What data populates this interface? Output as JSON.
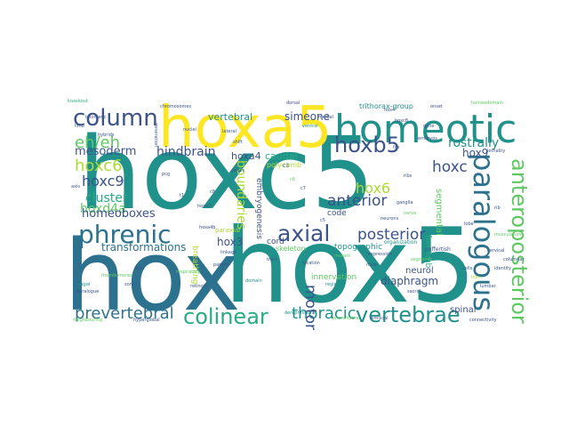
{
  "colors": {
    "background": "#ffffff",
    "palette": {
      "dark_purple": "#440154",
      "indigo": "#3b528b",
      "slate_blue": "#2c728e",
      "teal": "#21918c",
      "green": "#27ad81",
      "light_green": "#5ec962",
      "lime": "#aadc32",
      "yellow": "#fde725"
    }
  },
  "words": [
    {
      "text": "hoxc5",
      "color": "teal"
    },
    {
      "text": "hox",
      "color": "slate_blue"
    },
    {
      "text": "hox5",
      "color": "teal"
    },
    {
      "text": "hoxa5",
      "color": "yellow"
    },
    {
      "text": "homeotic",
      "color": "teal"
    },
    {
      "text": "paralogous",
      "color": "slate_blue"
    },
    {
      "text": "column",
      "color": "indigo"
    },
    {
      "text": "hoxb5",
      "color": "indigo"
    },
    {
      "text": "phrenic",
      "color": "slate_blue"
    },
    {
      "text": "axial",
      "color": "indigo"
    },
    {
      "text": "anteroposterior",
      "color": "light_green"
    },
    {
      "text": "colinear",
      "color": "green"
    },
    {
      "text": "vertebrae",
      "color": "teal"
    },
    {
      "text": "eh/eh",
      "color": "light_green"
    },
    {
      "text": "hoxc6",
      "color": "lime"
    },
    {
      "text": "anterior",
      "color": "indigo"
    },
    {
      "text": "posterior",
      "color": "indigo"
    },
    {
      "text": "prevertebral",
      "color": "slate_blue"
    },
    {
      "text": "thoracic",
      "color": "teal"
    },
    {
      "text": "motor",
      "color": "indigo"
    },
    {
      "text": "hoxc",
      "color": "indigo"
    },
    {
      "text": "hoxc9",
      "color": "indigo"
    },
    {
      "text": "hox6",
      "color": "lime"
    },
    {
      "text": "hoxd4a",
      "color": "light_green"
    },
    {
      "text": "cluster",
      "color": "green"
    },
    {
      "text": "rostrally",
      "color": "teal"
    },
    {
      "text": "homeoboxes",
      "color": "indigo"
    },
    {
      "text": "mesoderm",
      "color": "indigo"
    },
    {
      "text": "hindbrain",
      "color": "indigo"
    },
    {
      "text": "boundaries",
      "color": "lime"
    },
    {
      "text": "transformations",
      "color": "slate_blue"
    },
    {
      "text": "hox3",
      "color": "indigo"
    },
    {
      "text": "hox9",
      "color": "indigo"
    },
    {
      "text": "simeone",
      "color": "indigo"
    },
    {
      "text": "vertebral",
      "color": "teal"
    },
    {
      "text": "hoxa4",
      "color": "indigo"
    },
    {
      "text": "caudal",
      "color": "green"
    },
    {
      "text": "innervation",
      "color": "light_green"
    },
    {
      "text": "trithorax-group",
      "color": "teal"
    },
    {
      "text": "diaphragm",
      "color": "indigo"
    },
    {
      "text": "neurol",
      "color": "indigo"
    },
    {
      "text": "spinal",
      "color": "indigo"
    },
    {
      "text": "segmental",
      "color": "light_green"
    },
    {
      "text": "forelimb",
      "color": "green"
    },
    {
      "text": "code",
      "color": "indigo"
    },
    {
      "text": "cord",
      "color": "indigo"
    },
    {
      "text": "skeleton",
      "color": "light_green"
    },
    {
      "text": "breathing",
      "color": "lime"
    },
    {
      "text": "topographic",
      "color": "teal"
    },
    {
      "text": "embryogenesis",
      "color": "indigo"
    },
    {
      "text": "polycomb",
      "color": "lime"
    },
    {
      "text": "paraxial",
      "color": "lime"
    },
    {
      "text": "organization",
      "color": "teal"
    },
    {
      "text": "puffertish",
      "color": "indigo"
    },
    {
      "text": "neighbouring",
      "color": "light_green"
    },
    {
      "text": "hyperglobal",
      "color": "indigo"
    },
    {
      "text": "telomeric",
      "color": "indigo"
    },
    {
      "text": "musculature",
      "color": "light_green"
    },
    {
      "text": "connectivity",
      "color": "indigo"
    },
    {
      "text": "derepression",
      "color": "teal"
    },
    {
      "text": "lemiscal",
      "color": "indigo"
    },
    {
      "text": "prevertebra",
      "color": "light_green"
    },
    {
      "text": "chromosomes",
      "color": "indigo"
    },
    {
      "text": "generation",
      "color": "indigo"
    },
    {
      "text": "hybrids",
      "color": "indigo"
    },
    {
      "text": "knockout",
      "color": "green"
    },
    {
      "text": "homeodomain",
      "color": "light_green"
    },
    {
      "text": "lethality",
      "color": "indigo"
    },
    {
      "text": "embryos",
      "color": "indigo"
    },
    {
      "text": "axis",
      "color": "indigo"
    },
    {
      "text": "location",
      "color": "indigo"
    },
    {
      "text": "pattern",
      "color": "indigo"
    },
    {
      "text": "linkage",
      "color": "indigo"
    },
    {
      "text": "respiratory",
      "color": "light_green"
    },
    {
      "text": "sagal",
      "color": "teal"
    },
    {
      "text": "paralogue",
      "color": "indigo"
    },
    {
      "text": "rhombomeres",
      "color": "light_green"
    },
    {
      "text": "dorsal",
      "color": "indigo"
    },
    {
      "text": "ventral",
      "color": "teal"
    },
    {
      "text": "limb",
      "color": "indigo"
    },
    {
      "text": "genes",
      "color": "indigo"
    },
    {
      "text": "expression",
      "color": "indigo"
    },
    {
      "text": "mutant",
      "color": "light_green"
    },
    {
      "text": "mice",
      "color": "indigo"
    },
    {
      "text": "domain",
      "color": "teal"
    },
    {
      "text": "nerve",
      "color": "light_green"
    },
    {
      "text": "neurons",
      "color": "indigo"
    },
    {
      "text": "region",
      "color": "teal"
    },
    {
      "text": "segments",
      "color": "light_green"
    },
    {
      "text": "cells",
      "color": "indigo"
    },
    {
      "text": "loss",
      "color": "lime"
    },
    {
      "text": "rib",
      "color": "indigo"
    },
    {
      "text": "c3",
      "color": "indigo"
    },
    {
      "text": "c5",
      "color": "indigo"
    },
    {
      "text": "c6",
      "color": "light_green"
    },
    {
      "text": "c7",
      "color": "indigo"
    },
    {
      "text": "c8",
      "color": "indigo"
    },
    {
      "text": "t1",
      "color": "indigo"
    },
    {
      "text": "fox",
      "color": "indigo"
    },
    {
      "text": "hoxa4b",
      "color": "indigo"
    },
    {
      "text": "hoxa7",
      "color": "indigo"
    },
    {
      "text": "hox4",
      "color": "indigo"
    },
    {
      "text": "hoxc8",
      "color": "indigo"
    },
    {
      "text": "pcg",
      "color": "indigo"
    },
    {
      "text": "fish",
      "color": "indigo"
    },
    {
      "text": "sonic",
      "color": "indigo"
    },
    {
      "text": "retinoic",
      "color": "indigo"
    },
    {
      "text": "tract",
      "color": "indigo"
    },
    {
      "text": "ribs",
      "color": "indigo"
    },
    {
      "text": "ganglia",
      "color": "indigo"
    },
    {
      "text": "cervical",
      "color": "indigo"
    },
    {
      "text": "columnar",
      "color": "indigo"
    },
    {
      "text": "identity",
      "color": "indigo"
    },
    {
      "text": "lumbar",
      "color": "indigo"
    },
    {
      "text": "sacral",
      "color": "indigo"
    },
    {
      "text": "lobe",
      "color": "indigo"
    },
    {
      "text": "medial",
      "color": "indigo"
    },
    {
      "text": "lateral",
      "color": "indigo"
    },
    {
      "text": "nuclei",
      "color": "indigo"
    },
    {
      "text": "shift",
      "color": "indigo"
    },
    {
      "text": "gene",
      "color": "indigo"
    },
    {
      "text": "onset",
      "color": "indigo"
    }
  ]
}
